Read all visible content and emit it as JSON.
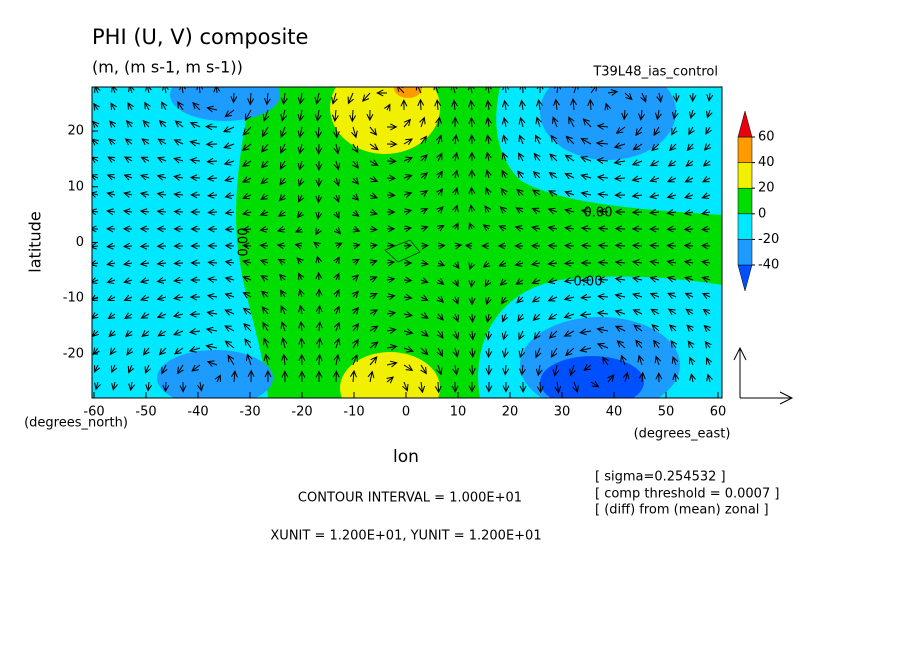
{
  "chart_data": {
    "type": "contour",
    "title": "PHI (U, V) composite",
    "subtitle": "(m, (m s-1, m s-1))",
    "run_label": "T39L48_ias_control",
    "x_label": "lon",
    "y_label": "latitude",
    "x_unit": "(degrees_east)",
    "y_unit": "(degrees_north)",
    "xlim": [
      -60,
      60
    ],
    "ylim": [
      -27.9,
      27.9
    ],
    "xticks": [
      -60,
      -50,
      -40,
      -30,
      -20,
      -10,
      0,
      10,
      20,
      30,
      40,
      50,
      60
    ],
    "yticks": [
      -20,
      -10,
      0,
      10,
      20
    ],
    "colorbar_ticks": [
      -40,
      -20,
      0,
      20,
      40,
      60
    ],
    "colors": [
      "#0050ff",
      "#1e9bff",
      "#00e8ff",
      "#00dd00",
      "#f0f000",
      "#ff9a00",
      "#e8000b"
    ],
    "contour_labels": [
      "0.00",
      "0.00",
      "0.00"
    ],
    "annotations": [
      "CONTOUR INTERVAL = 1.000E+01",
      "XUNIT = 1.200E+01, YUNIT = 1.200E+01"
    ],
    "notes": [
      "[ sigma=0.254532 ]",
      "[ comp threshold = 0.0007 ]",
      "[ (diff) from (mean) zonal ]"
    ]
  }
}
